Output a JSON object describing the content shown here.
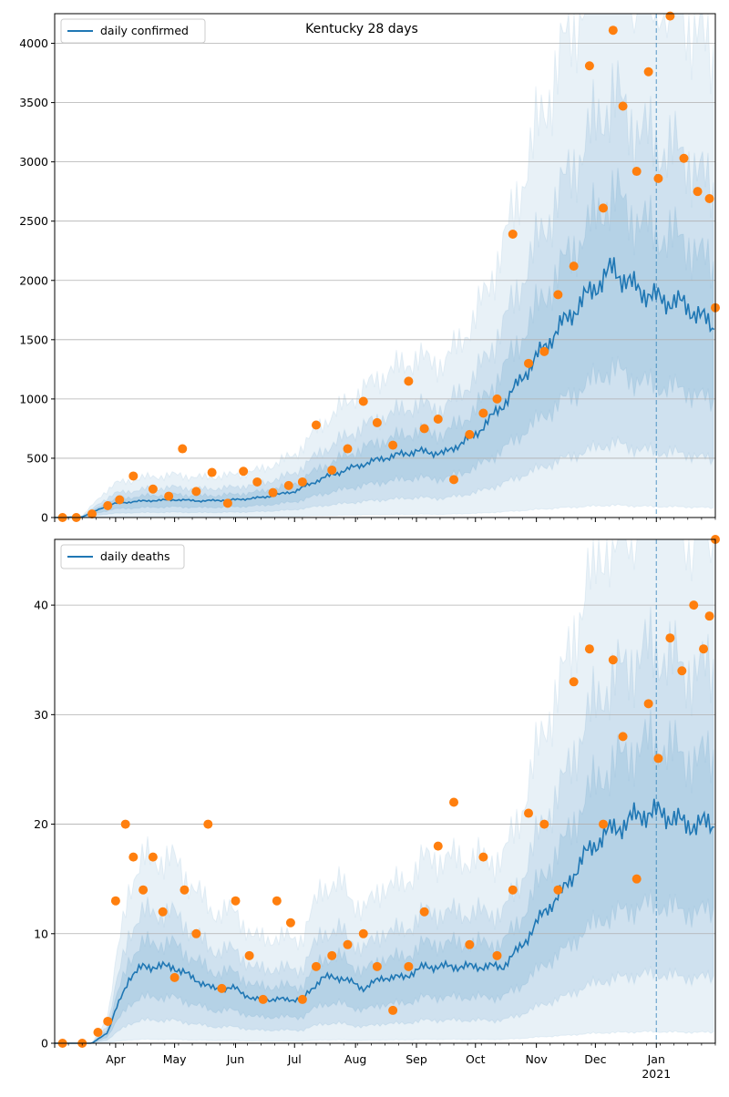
{
  "chart_data": [
    {
      "type": "line",
      "title": "Kentucky 28 days",
      "legend": "top-left",
      "grid": "y",
      "ylim": [
        0,
        4250
      ],
      "yticks": [
        0,
        500,
        1000,
        1500,
        2000,
        2500,
        3000,
        3500,
        4000
      ],
      "xlim": [
        "2020-03-01",
        "2021-01-31"
      ],
      "vline": "2021-01-01",
      "series": [
        {
          "name": "daily confirmed",
          "kind": "line",
          "color": "#1f77b4",
          "points": [
            [
              "2020-03-01",
              0
            ],
            [
              "2020-03-15",
              5
            ],
            [
              "2020-03-25",
              80
            ],
            [
              "2020-04-01",
              120
            ],
            [
              "2020-04-15",
              140
            ],
            [
              "2020-05-01",
              150
            ],
            [
              "2020-05-15",
              140
            ],
            [
              "2020-06-01",
              150
            ],
            [
              "2020-06-15",
              170
            ],
            [
              "2020-07-01",
              220
            ],
            [
              "2020-07-15",
              330
            ],
            [
              "2020-08-01",
              430
            ],
            [
              "2020-08-15",
              500
            ],
            [
              "2020-09-01",
              560
            ],
            [
              "2020-09-15",
              540
            ],
            [
              "2020-10-01",
              700
            ],
            [
              "2020-10-15",
              950
            ],
            [
              "2020-11-01",
              1350
            ],
            [
              "2020-11-15",
              1650
            ],
            [
              "2020-12-01",
              1950
            ],
            [
              "2020-12-10",
              2100
            ],
            [
              "2020-12-20",
              1950
            ],
            [
              "2021-01-01",
              1850
            ],
            [
              "2021-01-15",
              1800
            ],
            [
              "2021-01-31",
              1600
            ]
          ]
        },
        {
          "name": "",
          "kind": "scatter",
          "color": "#ff7f0e",
          "points": [
            [
              "2020-03-05",
              0
            ],
            [
              "2020-03-12",
              0
            ],
            [
              "2020-03-20",
              30
            ],
            [
              "2020-03-28",
              100
            ],
            [
              "2020-04-03",
              150
            ],
            [
              "2020-04-10",
              350
            ],
            [
              "2020-04-20",
              240
            ],
            [
              "2020-04-28",
              180
            ],
            [
              "2020-05-05",
              580
            ],
            [
              "2020-05-12",
              220
            ],
            [
              "2020-05-20",
              380
            ],
            [
              "2020-05-28",
              120
            ],
            [
              "2020-06-05",
              390
            ],
            [
              "2020-06-12",
              300
            ],
            [
              "2020-06-20",
              210
            ],
            [
              "2020-06-28",
              270
            ],
            [
              "2020-07-05",
              300
            ],
            [
              "2020-07-12",
              780
            ],
            [
              "2020-07-20",
              400
            ],
            [
              "2020-07-28",
              580
            ],
            [
              "2020-08-05",
              980
            ],
            [
              "2020-08-12",
              800
            ],
            [
              "2020-08-20",
              610
            ],
            [
              "2020-08-28",
              1150
            ],
            [
              "2020-09-05",
              750
            ],
            [
              "2020-09-12",
              830
            ],
            [
              "2020-09-20",
              320
            ],
            [
              "2020-09-28",
              700
            ],
            [
              "2020-10-05",
              880
            ],
            [
              "2020-10-12",
              1000
            ],
            [
              "2020-10-20",
              2390
            ],
            [
              "2020-10-28",
              1300
            ],
            [
              "2020-11-05",
              1400
            ],
            [
              "2020-11-12",
              1880
            ],
            [
              "2020-11-20",
              2120
            ],
            [
              "2020-11-28",
              3810
            ],
            [
              "2020-12-05",
              2610
            ],
            [
              "2020-12-10",
              4110
            ],
            [
              "2020-12-15",
              3470
            ],
            [
              "2020-12-22",
              2920
            ],
            [
              "2020-12-28",
              3760
            ],
            [
              "2021-01-02",
              2860
            ],
            [
              "2021-01-08",
              4230
            ],
            [
              "2021-01-15",
              3030
            ],
            [
              "2021-01-22",
              2750
            ],
            [
              "2021-01-28",
              2690
            ],
            [
              "2021-01-31",
              1770
            ]
          ]
        }
      ]
    },
    {
      "type": "line",
      "legend": "top-left",
      "grid": "y",
      "ylim": [
        0,
        46
      ],
      "yticks": [
        0,
        10,
        20,
        30,
        40
      ],
      "xlim": [
        "2020-03-01",
        "2021-01-31"
      ],
      "xticks": [
        "Apr",
        "May",
        "Jun",
        "Jul",
        "Aug",
        "Sep",
        "Oct",
        "Nov",
        "Dec",
        "Jan"
      ],
      "xtick_year": "2021",
      "vline": "2021-01-01",
      "series": [
        {
          "name": "daily deaths",
          "kind": "line",
          "color": "#1f77b4",
          "points": [
            [
              "2020-03-01",
              0
            ],
            [
              "2020-03-20",
              0
            ],
            [
              "2020-03-28",
              1
            ],
            [
              "2020-04-01",
              3
            ],
            [
              "2020-04-08",
              6
            ],
            [
              "2020-04-15",
              7
            ],
            [
              "2020-04-30",
              7
            ],
            [
              "2020-05-10",
              6
            ],
            [
              "2020-05-20",
              5
            ],
            [
              "2020-06-01",
              5
            ],
            [
              "2020-06-10",
              4
            ],
            [
              "2020-06-25",
              4
            ],
            [
              "2020-07-05",
              4
            ],
            [
              "2020-07-15",
              6
            ],
            [
              "2020-07-25",
              6
            ],
            [
              "2020-08-05",
              5
            ],
            [
              "2020-08-15",
              6
            ],
            [
              "2020-08-25",
              6
            ],
            [
              "2020-09-05",
              7
            ],
            [
              "2020-09-15",
              7
            ],
            [
              "2020-09-25",
              7
            ],
            [
              "2020-10-05",
              7
            ],
            [
              "2020-10-15",
              7
            ],
            [
              "2020-10-25",
              9
            ],
            [
              "2020-11-05",
              12
            ],
            [
              "2020-11-15",
              14
            ],
            [
              "2020-11-25",
              17
            ],
            [
              "2020-12-05",
              19
            ],
            [
              "2020-12-15",
              20
            ],
            [
              "2020-12-25",
              21
            ],
            [
              "2021-01-05",
              21
            ],
            [
              "2021-01-15",
              20
            ],
            [
              "2021-01-31",
              20
            ]
          ]
        },
        {
          "name": "",
          "kind": "scatter",
          "color": "#ff7f0e",
          "points": [
            [
              "2020-03-05",
              0
            ],
            [
              "2020-03-15",
              0
            ],
            [
              "2020-03-23",
              1
            ],
            [
              "2020-03-28",
              2
            ],
            [
              "2020-04-01",
              13
            ],
            [
              "2020-04-06",
              20
            ],
            [
              "2020-04-10",
              17
            ],
            [
              "2020-04-15",
              14
            ],
            [
              "2020-04-20",
              17
            ],
            [
              "2020-04-25",
              12
            ],
            [
              "2020-05-01",
              6
            ],
            [
              "2020-05-06",
              14
            ],
            [
              "2020-05-12",
              10
            ],
            [
              "2020-05-18",
              20
            ],
            [
              "2020-05-25",
              5
            ],
            [
              "2020-06-01",
              13
            ],
            [
              "2020-06-08",
              8
            ],
            [
              "2020-06-15",
              4
            ],
            [
              "2020-06-22",
              13
            ],
            [
              "2020-06-29",
              11
            ],
            [
              "2020-07-05",
              4
            ],
            [
              "2020-07-12",
              7
            ],
            [
              "2020-07-20",
              8
            ],
            [
              "2020-07-28",
              9
            ],
            [
              "2020-08-05",
              10
            ],
            [
              "2020-08-12",
              7
            ],
            [
              "2020-08-20",
              3
            ],
            [
              "2020-08-28",
              7
            ],
            [
              "2020-09-05",
              12
            ],
            [
              "2020-09-12",
              18
            ],
            [
              "2020-09-20",
              22
            ],
            [
              "2020-09-28",
              9
            ],
            [
              "2020-10-05",
              17
            ],
            [
              "2020-10-12",
              8
            ],
            [
              "2020-10-20",
              14
            ],
            [
              "2020-10-28",
              21
            ],
            [
              "2020-11-05",
              20
            ],
            [
              "2020-11-12",
              14
            ],
            [
              "2020-11-20",
              33
            ],
            [
              "2020-11-28",
              36
            ],
            [
              "2020-12-05",
              20
            ],
            [
              "2020-12-10",
              35
            ],
            [
              "2020-12-15",
              28
            ],
            [
              "2020-12-22",
              15
            ],
            [
              "2020-12-28",
              31
            ],
            [
              "2021-01-02",
              26
            ],
            [
              "2021-01-08",
              37
            ],
            [
              "2021-01-14",
              34
            ],
            [
              "2021-01-20",
              40
            ],
            [
              "2021-01-25",
              36
            ],
            [
              "2021-01-28",
              39
            ],
            [
              "2021-01-31",
              46
            ]
          ]
        }
      ]
    }
  ]
}
